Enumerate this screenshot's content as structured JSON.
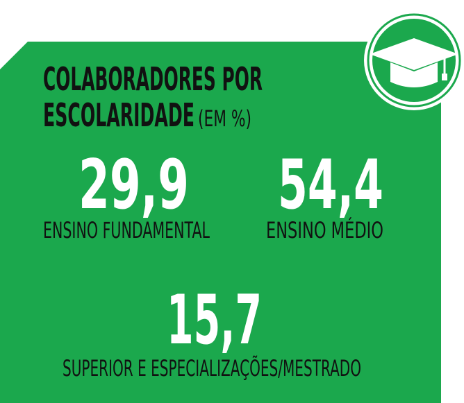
{
  "header": {
    "title_line1": "COLABORADORES POR",
    "title_line2": "ESCOLARIDADE",
    "title_suffix": "(EM %)"
  },
  "stats": [
    {
      "value": "29,9",
      "label": "ENSINO FUNDAMENTAL"
    },
    {
      "value": "54,4",
      "label": "ENSINO  MÉDIO"
    },
    {
      "value": "15,7",
      "label": "SUPERIOR E ESPECIALIZAÇÕES/MESTRADO"
    }
  ]
}
